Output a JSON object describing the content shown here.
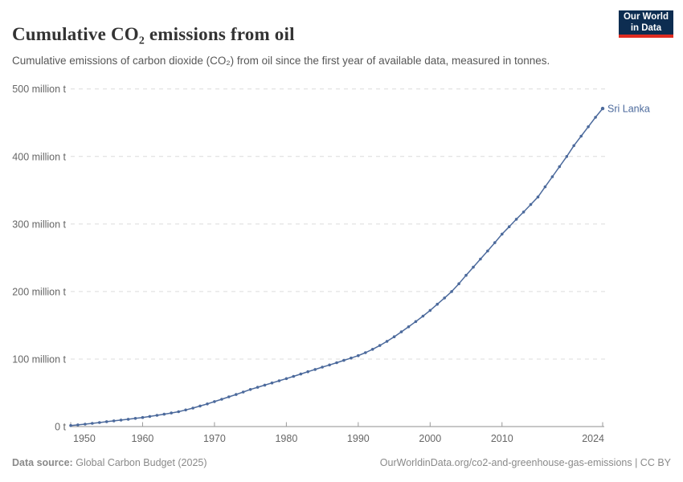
{
  "header": {
    "title": "Cumulative CO₂ emissions from oil",
    "subtitle": "Cumulative emissions of carbon dioxide (CO₂) from oil since the first year of available data, measured in tonnes.",
    "logo_line1": "Our World",
    "logo_line2": "in Data"
  },
  "footer": {
    "source_label": "Data source:",
    "source_value": "Global Carbon Budget (2025)",
    "link_text": "OurWorldinData.org/co2-and-greenhouse-gas-emissions | CC BY"
  },
  "colors": {
    "series_blue": "#4c6a9c",
    "gridline": "#dcdcdc",
    "axis": "#8f8f8f",
    "tick_label": "#666666",
    "logo_navy": "#0d2d51",
    "logo_red": "#e02c21"
  },
  "chart_data": {
    "type": "line",
    "title": "Cumulative CO₂ emissions from oil",
    "unit": "tonnes (millions)",
    "xlabel": "",
    "ylabel": "",
    "xlim": [
      1950,
      2024
    ],
    "ylim": [
      0,
      500
    ],
    "grid": "horizontal-dashed",
    "legend_position": "end-of-line-label",
    "x_ticks": [
      1950,
      1960,
      1970,
      1980,
      1990,
      2000,
      2010,
      2024
    ],
    "y_ticks": [
      {
        "value": 0,
        "label": "0 t"
      },
      {
        "value": 100,
        "label": "100 million t"
      },
      {
        "value": 200,
        "label": "200 million t"
      },
      {
        "value": 300,
        "label": "300 million t"
      },
      {
        "value": 400,
        "label": "400 million t"
      },
      {
        "value": 500,
        "label": "500 million t"
      }
    ],
    "series": [
      {
        "name": "Sri Lanka",
        "color": "#4c6a9c",
        "x": [
          1950,
          1951,
          1952,
          1953,
          1954,
          1955,
          1956,
          1957,
          1958,
          1959,
          1960,
          1961,
          1962,
          1963,
          1964,
          1965,
          1966,
          1967,
          1968,
          1969,
          1970,
          1971,
          1972,
          1973,
          1974,
          1975,
          1976,
          1977,
          1978,
          1979,
          1980,
          1981,
          1982,
          1983,
          1984,
          1985,
          1986,
          1987,
          1988,
          1989,
          1990,
          1991,
          1992,
          1993,
          1994,
          1995,
          1996,
          1997,
          1998,
          1999,
          2000,
          2001,
          2002,
          2003,
          2004,
          2005,
          2006,
          2007,
          2008,
          2009,
          2010,
          2011,
          2012,
          2013,
          2014,
          2015,
          2016,
          2017,
          2018,
          2019,
          2020,
          2021,
          2022,
          2023,
          2024
        ],
        "values": [
          1.5,
          2.5,
          3.6,
          4.8,
          6.0,
          7.2,
          8.4,
          9.6,
          10.8,
          12.1,
          13.5,
          15.0,
          16.6,
          18.3,
          20.1,
          22.0,
          24.6,
          27.4,
          30.4,
          33.6,
          37.0,
          40.5,
          44.0,
          47.5,
          51.2,
          55.0,
          58.2,
          61.4,
          64.6,
          67.8,
          71.0,
          74.4,
          77.8,
          81.2,
          84.6,
          88.0,
          91.3,
          94.6,
          98.0,
          101.5,
          105.0,
          109.5,
          114.5,
          120.0,
          126.2,
          133.0,
          140.2,
          147.7,
          155.5,
          163.6,
          172.0,
          181.2,
          190.5,
          200.0,
          211.5,
          224.0,
          236.0,
          248.0,
          260.0,
          272.3,
          285.0,
          296.0,
          307.0,
          317.8,
          328.8,
          340.0,
          355.0,
          370.0,
          385.0,
          400.0,
          416.0,
          430.0,
          444.0,
          458.0,
          471.0
        ]
      }
    ]
  }
}
